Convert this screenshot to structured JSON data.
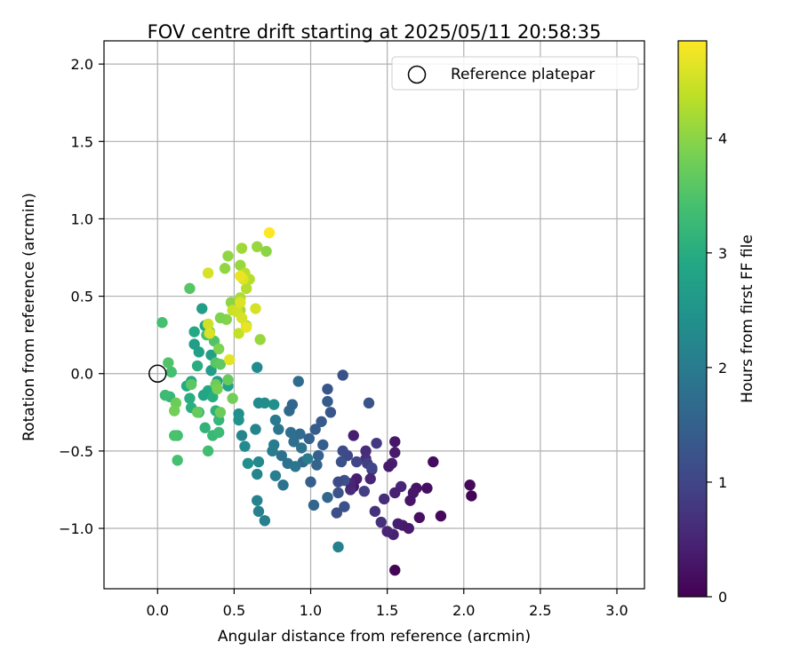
{
  "chart_data": {
    "type": "scatter",
    "title": "FOV centre drift starting at 2025/05/11 20:58:35",
    "xlabel": "Angular distance from reference (arcmin)",
    "ylabel": "Rotation from reference (arcmin)",
    "xlim": [
      -0.35,
      3.18
    ],
    "ylim": [
      -1.39,
      2.15
    ],
    "xticks": [
      "0.0",
      "0.5",
      "1.0",
      "1.5",
      "2.0",
      "2.5",
      "3.0"
    ],
    "yticks": [
      "−1.0",
      "−0.5",
      "0.0",
      "0.5",
      "1.0",
      "1.5",
      "2.0"
    ],
    "grid": true,
    "legend": {
      "placement": "top-right",
      "entries": [
        "Reference platepar"
      ]
    },
    "reference_point": {
      "x": 0.0,
      "y": 0.0,
      "marker": "open-circle"
    },
    "colorbar": {
      "label": "Hours from first FF file",
      "colormap": "viridis",
      "range": [
        0,
        4.85
      ],
      "ticks": [
        "0",
        "1",
        "2",
        "3",
        "4"
      ]
    },
    "points": [
      {
        "x": 1.55,
        "y": -1.27,
        "c": 0.05
      },
      {
        "x": 2.05,
        "y": -0.79,
        "c": 0.05
      },
      {
        "x": 2.04,
        "y": -0.72,
        "c": 0.1
      },
      {
        "x": 1.85,
        "y": -0.92,
        "c": 0.1
      },
      {
        "x": 1.8,
        "y": -0.57,
        "c": 0.15
      },
      {
        "x": 1.76,
        "y": -0.74,
        "c": 0.2
      },
      {
        "x": 1.71,
        "y": -0.93,
        "c": 0.2
      },
      {
        "x": 1.69,
        "y": -0.74,
        "c": 0.25
      },
      {
        "x": 1.67,
        "y": -0.77,
        "c": 0.3
      },
      {
        "x": 1.65,
        "y": -0.82,
        "c": 0.3
      },
      {
        "x": 1.64,
        "y": -1.0,
        "c": 0.35
      },
      {
        "x": 1.6,
        "y": -0.98,
        "c": 0.35
      },
      {
        "x": 1.57,
        "y": -0.97,
        "c": 0.4
      },
      {
        "x": 1.54,
        "y": -1.04,
        "c": 0.45
      },
      {
        "x": 1.5,
        "y": -1.02,
        "c": 0.5
      },
      {
        "x": 1.59,
        "y": -0.73,
        "c": 0.5
      },
      {
        "x": 1.55,
        "y": -0.77,
        "c": 0.45
      },
      {
        "x": 1.55,
        "y": -0.44,
        "c": 0.3
      },
      {
        "x": 1.55,
        "y": -0.51,
        "c": 0.35
      },
      {
        "x": 1.53,
        "y": -0.58,
        "c": 0.4
      },
      {
        "x": 1.51,
        "y": -0.6,
        "c": 0.35
      },
      {
        "x": 1.48,
        "y": -0.81,
        "c": 0.6
      },
      {
        "x": 1.46,
        "y": -0.96,
        "c": 0.65
      },
      {
        "x": 1.42,
        "y": -0.89,
        "c": 0.7
      },
      {
        "x": 1.43,
        "y": -0.45,
        "c": 0.8
      },
      {
        "x": 1.4,
        "y": -0.62,
        "c": 0.7
      },
      {
        "x": 1.39,
        "y": -0.68,
        "c": 0.5
      },
      {
        "x": 1.35,
        "y": -0.76,
        "c": 0.9
      },
      {
        "x": 1.3,
        "y": -0.68,
        "c": 0.4
      },
      {
        "x": 1.28,
        "y": -0.73,
        "c": 0.3
      },
      {
        "x": 1.26,
        "y": -0.75,
        "c": 0.6
      },
      {
        "x": 1.26,
        "y": -0.71,
        "c": 0.5
      },
      {
        "x": 1.28,
        "y": -0.4,
        "c": 0.4
      },
      {
        "x": 1.36,
        "y": -0.5,
        "c": 0.6
      },
      {
        "x": 1.36,
        "y": -0.55,
        "c": 0.65
      },
      {
        "x": 1.37,
        "y": -0.58,
        "c": 0.9
      },
      {
        "x": 1.4,
        "y": -0.61,
        "c": 1.0
      },
      {
        "x": 1.3,
        "y": -0.57,
        "c": 1.0
      },
      {
        "x": 1.24,
        "y": -0.53,
        "c": 1.05
      },
      {
        "x": 1.21,
        "y": -0.5,
        "c": 1.1
      },
      {
        "x": 1.2,
        "y": -0.57,
        "c": 1.2
      },
      {
        "x": 1.22,
        "y": -0.69,
        "c": 1.2
      },
      {
        "x": 1.22,
        "y": -0.86,
        "c": 1.2
      },
      {
        "x": 1.17,
        "y": -0.9,
        "c": 1.15
      },
      {
        "x": 1.18,
        "y": -0.77,
        "c": 1.25
      },
      {
        "x": 1.18,
        "y": -0.7,
        "c": 1.1
      },
      {
        "x": 1.21,
        "y": -0.01,
        "c": 1.2
      },
      {
        "x": 1.38,
        "y": -0.19,
        "c": 1.25
      },
      {
        "x": 1.11,
        "y": -0.1,
        "c": 1.3
      },
      {
        "x": 1.11,
        "y": -0.18,
        "c": 1.4
      },
      {
        "x": 1.13,
        "y": -0.25,
        "c": 1.3
      },
      {
        "x": 1.07,
        "y": -0.31,
        "c": 1.35
      },
      {
        "x": 1.03,
        "y": -0.36,
        "c": 1.4
      },
      {
        "x": 0.99,
        "y": -0.42,
        "c": 1.5
      },
      {
        "x": 1.08,
        "y": -0.46,
        "c": 1.45
      },
      {
        "x": 1.05,
        "y": -0.53,
        "c": 1.5
      },
      {
        "x": 1.04,
        "y": -0.59,
        "c": 1.55
      },
      {
        "x": 1.11,
        "y": -0.8,
        "c": 1.6
      },
      {
        "x": 1.02,
        "y": -0.85,
        "c": 1.6
      },
      {
        "x": 1.0,
        "y": -0.7,
        "c": 1.45
      },
      {
        "x": 0.95,
        "y": -0.57,
        "c": 1.65
      },
      {
        "x": 0.92,
        "y": -0.05,
        "c": 1.7
      },
      {
        "x": 0.93,
        "y": -0.39,
        "c": 1.7
      },
      {
        "x": 0.89,
        "y": -0.44,
        "c": 1.75
      },
      {
        "x": 0.87,
        "y": -0.38,
        "c": 1.75
      },
      {
        "x": 0.86,
        "y": -0.24,
        "c": 1.65
      },
      {
        "x": 0.88,
        "y": -0.2,
        "c": 1.6
      },
      {
        "x": 0.81,
        "y": -0.53,
        "c": 1.8
      },
      {
        "x": 0.82,
        "y": -0.72,
        "c": 1.85
      },
      {
        "x": 0.85,
        "y": -0.58,
        "c": 1.8
      },
      {
        "x": 0.79,
        "y": -0.36,
        "c": 1.9
      },
      {
        "x": 0.77,
        "y": -0.3,
        "c": 1.95
      },
      {
        "x": 0.76,
        "y": -0.46,
        "c": 2.0
      },
      {
        "x": 0.75,
        "y": -0.5,
        "c": 2.0
      },
      {
        "x": 0.77,
        "y": -0.66,
        "c": 2.05
      },
      {
        "x": 0.7,
        "y": -0.95,
        "c": 2.1
      },
      {
        "x": 0.66,
        "y": -0.89,
        "c": 2.1
      },
      {
        "x": 0.65,
        "y": -0.82,
        "c": 2.15
      },
      {
        "x": 0.65,
        "y": -0.65,
        "c": 2.2
      },
      {
        "x": 0.66,
        "y": -0.57,
        "c": 2.25
      },
      {
        "x": 0.64,
        "y": -0.36,
        "c": 2.2
      },
      {
        "x": 0.55,
        "y": -0.4,
        "c": 2.2
      },
      {
        "x": 0.57,
        "y": -0.47,
        "c": 2.3
      },
      {
        "x": 0.59,
        "y": -0.58,
        "c": 2.4
      },
      {
        "x": 0.66,
        "y": -0.19,
        "c": 2.3
      },
      {
        "x": 0.7,
        "y": -0.19,
        "c": 2.35
      },
      {
        "x": 0.76,
        "y": -0.2,
        "c": 2.4
      },
      {
        "x": 0.65,
        "y": 0.04,
        "c": 2.3
      },
      {
        "x": 0.53,
        "y": -0.26,
        "c": 2.4
      },
      {
        "x": 0.53,
        "y": -0.3,
        "c": 2.45
      },
      {
        "x": 0.9,
        "y": -0.6,
        "c": 1.9
      },
      {
        "x": 0.94,
        "y": -0.48,
        "c": 1.85
      },
      {
        "x": 0.98,
        "y": -0.55,
        "c": 2.0
      },
      {
        "x": 1.18,
        "y": -1.12,
        "c": 2.1
      },
      {
        "x": 0.29,
        "y": 0.42,
        "c": 2.7
      },
      {
        "x": 0.31,
        "y": 0.31,
        "c": 2.85
      },
      {
        "x": 0.24,
        "y": 0.27,
        "c": 2.9
      },
      {
        "x": 0.24,
        "y": 0.19,
        "c": 2.7
      },
      {
        "x": 0.27,
        "y": 0.14,
        "c": 2.75
      },
      {
        "x": 0.35,
        "y": 0.12,
        "c": 2.75
      },
      {
        "x": 0.26,
        "y": 0.05,
        "c": 3.0
      },
      {
        "x": 0.35,
        "y": 0.02,
        "c": 2.7
      },
      {
        "x": 0.39,
        "y": -0.05,
        "c": 2.75
      },
      {
        "x": 0.46,
        "y": -0.08,
        "c": 2.8
      },
      {
        "x": 0.33,
        "y": -0.11,
        "c": 2.9
      },
      {
        "x": 0.3,
        "y": -0.14,
        "c": 2.85
      },
      {
        "x": 0.22,
        "y": -0.05,
        "c": 2.95
      },
      {
        "x": 0.19,
        "y": -0.08,
        "c": 2.95
      },
      {
        "x": 0.21,
        "y": -0.16,
        "c": 3.0
      },
      {
        "x": 0.22,
        "y": -0.22,
        "c": 3.05
      },
      {
        "x": 0.27,
        "y": -0.25,
        "c": 3.1
      },
      {
        "x": 0.36,
        "y": -0.15,
        "c": 3.0
      },
      {
        "x": 0.38,
        "y": -0.24,
        "c": 3.1
      },
      {
        "x": 0.4,
        "y": -0.3,
        "c": 3.2
      },
      {
        "x": 0.31,
        "y": -0.35,
        "c": 3.15
      },
      {
        "x": 0.36,
        "y": -0.4,
        "c": 3.25
      },
      {
        "x": 0.4,
        "y": -0.38,
        "c": 3.3
      },
      {
        "x": 0.33,
        "y": -0.5,
        "c": 3.35
      },
      {
        "x": 0.13,
        "y": -0.4,
        "c": 3.4
      },
      {
        "x": 0.11,
        "y": -0.4,
        "c": 3.45
      },
      {
        "x": 0.13,
        "y": -0.56,
        "c": 3.4
      },
      {
        "x": 0.08,
        "y": -0.15,
        "c": 3.2
      },
      {
        "x": 0.05,
        "y": -0.14,
        "c": 3.3
      },
      {
        "x": 0.09,
        "y": 0.01,
        "c": 3.4
      },
      {
        "x": 0.07,
        "y": 0.07,
        "c": 3.5
      },
      {
        "x": 0.03,
        "y": 0.33,
        "c": 3.4
      },
      {
        "x": 0.21,
        "y": 0.55,
        "c": 3.55
      },
      {
        "x": 0.32,
        "y": 0.25,
        "c": 3.45
      },
      {
        "x": 0.34,
        "y": 0.27,
        "c": 3.6
      },
      {
        "x": 0.37,
        "y": 0.21,
        "c": 3.5
      },
      {
        "x": 0.38,
        "y": 0.07,
        "c": 3.55
      },
      {
        "x": 0.41,
        "y": 0.06,
        "c": 3.65
      },
      {
        "x": 0.46,
        "y": -0.04,
        "c": 3.7
      },
      {
        "x": 0.38,
        "y": -0.07,
        "c": 3.75
      },
      {
        "x": 0.22,
        "y": -0.07,
        "c": 3.6
      },
      {
        "x": 0.26,
        "y": -0.25,
        "c": 3.7
      },
      {
        "x": 0.41,
        "y": -0.25,
        "c": 3.75
      },
      {
        "x": 0.12,
        "y": -0.19,
        "c": 3.75
      },
      {
        "x": 0.11,
        "y": -0.24,
        "c": 3.8
      },
      {
        "x": 0.49,
        "y": -0.16,
        "c": 3.8
      },
      {
        "x": 0.39,
        "y": -0.1,
        "c": 3.85
      },
      {
        "x": 0.4,
        "y": 0.16,
        "c": 3.9
      },
      {
        "x": 0.45,
        "y": 0.35,
        "c": 3.95
      },
      {
        "x": 0.41,
        "y": 0.36,
        "c": 3.9
      },
      {
        "x": 0.48,
        "y": 0.46,
        "c": 4.0
      },
      {
        "x": 0.44,
        "y": 0.68,
        "c": 4.05
      },
      {
        "x": 0.46,
        "y": 0.76,
        "c": 4.05
      },
      {
        "x": 0.54,
        "y": 0.7,
        "c": 4.1
      },
      {
        "x": 0.55,
        "y": 0.81,
        "c": 4.15
      },
      {
        "x": 0.65,
        "y": 0.82,
        "c": 4.1
      },
      {
        "x": 0.71,
        "y": 0.79,
        "c": 4.0
      },
      {
        "x": 0.67,
        "y": 0.22,
        "c": 4.1
      },
      {
        "x": 0.58,
        "y": 0.31,
        "c": 4.2
      },
      {
        "x": 0.54,
        "y": 0.41,
        "c": 4.2
      },
      {
        "x": 0.54,
        "y": 0.49,
        "c": 4.25
      },
      {
        "x": 0.58,
        "y": 0.55,
        "c": 4.3
      },
      {
        "x": 0.6,
        "y": 0.61,
        "c": 4.3
      },
      {
        "x": 0.57,
        "y": 0.65,
        "c": 4.35
      },
      {
        "x": 0.53,
        "y": 0.26,
        "c": 4.4
      },
      {
        "x": 0.49,
        "y": 0.41,
        "c": 4.45
      },
      {
        "x": 0.52,
        "y": 0.4,
        "c": 4.5
      },
      {
        "x": 0.55,
        "y": 0.36,
        "c": 4.55
      },
      {
        "x": 0.54,
        "y": 0.46,
        "c": 4.6
      },
      {
        "x": 0.56,
        "y": 0.61,
        "c": 4.6
      },
      {
        "x": 0.54,
        "y": 0.63,
        "c": 4.7
      },
      {
        "x": 0.33,
        "y": 0.65,
        "c": 4.55
      },
      {
        "x": 0.33,
        "y": 0.32,
        "c": 4.5
      },
      {
        "x": 0.34,
        "y": 0.26,
        "c": 4.6
      },
      {
        "x": 0.47,
        "y": 0.09,
        "c": 4.65
      },
      {
        "x": 0.58,
        "y": 0.3,
        "c": 4.7
      },
      {
        "x": 0.64,
        "y": 0.42,
        "c": 4.55
      },
      {
        "x": 0.73,
        "y": 0.91,
        "c": 4.85
      }
    ]
  }
}
